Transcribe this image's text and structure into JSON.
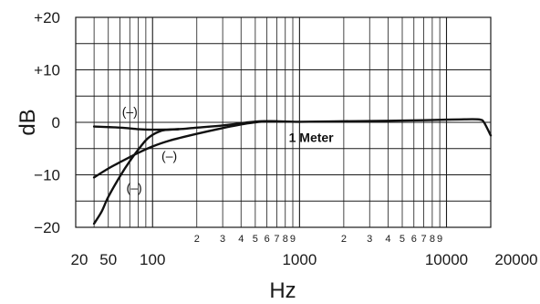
{
  "chart_data": {
    "type": "line",
    "xlabel": "Hz",
    "ylabel": "dB",
    "x_scale": "log",
    "xlim": [
      30,
      20000
    ],
    "ylim": [
      -20,
      20
    ],
    "grid": true,
    "y_ticks": [
      {
        "value": 20,
        "label": "+20"
      },
      {
        "value": 10,
        "label": "+10"
      },
      {
        "value": 0,
        "label": "0"
      },
      {
        "value": -10,
        "label": "−10"
      },
      {
        "value": -20,
        "label": "−20"
      }
    ],
    "x_major_ticks": [
      {
        "value": 20,
        "label": "20"
      },
      {
        "value": 50,
        "label": "50"
      },
      {
        "value": 100,
        "label": "100"
      },
      {
        "value": 1000,
        "label": "1000"
      },
      {
        "value": 10000,
        "label": "10000"
      },
      {
        "value": 20000,
        "label": "20000"
      }
    ],
    "x_minor_labels": [
      {
        "value": 200,
        "label": "2"
      },
      {
        "value": 300,
        "label": "3"
      },
      {
        "value": 400,
        "label": "4"
      },
      {
        "value": 500,
        "label": "5"
      },
      {
        "value": 600,
        "label": "6"
      },
      {
        "value": 700,
        "label": "7"
      },
      {
        "value": 800,
        "label": "8"
      },
      {
        "value": 900,
        "label": "9"
      },
      {
        "value": 2000,
        "label": "2"
      },
      {
        "value": 3000,
        "label": "3"
      },
      {
        "value": 4000,
        "label": "4"
      },
      {
        "value": 5000,
        "label": "5"
      },
      {
        "value": 6000,
        "label": "6"
      },
      {
        "value": 7000,
        "label": "7"
      },
      {
        "value": 8000,
        "label": "8"
      },
      {
        "value": 9000,
        "label": "9"
      }
    ],
    "series": [
      {
        "points": [
          [
            40,
            -0.8
          ],
          [
            60,
            -1.0
          ],
          [
            80,
            -1.3
          ],
          [
            100,
            -1.4
          ],
          [
            150,
            -1.3
          ],
          [
            200,
            -1.0
          ],
          [
            300,
            -0.6
          ],
          [
            450,
            0
          ],
          [
            550,
            0.2
          ],
          [
            700,
            0.2
          ],
          [
            1000,
            0.1
          ],
          [
            2000,
            0.2
          ],
          [
            4000,
            0.3
          ],
          [
            7000,
            0.4
          ],
          [
            10000,
            0.5
          ],
          [
            15000,
            0.6
          ],
          [
            17000,
            0.5
          ],
          [
            18000,
            0
          ],
          [
            20000,
            -2.5
          ]
        ]
      },
      {
        "points": [
          [
            40,
            -10.5
          ],
          [
            50,
            -8.8
          ],
          [
            60,
            -7.6
          ],
          [
            80,
            -5.8
          ],
          [
            100,
            -4.6
          ],
          [
            130,
            -3.5
          ],
          [
            200,
            -2.2
          ],
          [
            300,
            -1.1
          ],
          [
            400,
            -0.4
          ],
          [
            500,
            0
          ],
          [
            600,
            0.2
          ],
          [
            700,
            0.2
          ]
        ]
      },
      {
        "points": [
          [
            40,
            -19.3
          ],
          [
            45,
            -17.0
          ],
          [
            50,
            -14.2
          ],
          [
            60,
            -10.3
          ],
          [
            70,
            -7.4
          ],
          [
            80,
            -5.2
          ],
          [
            90,
            -3.4
          ],
          [
            100,
            -2.4
          ],
          [
            110,
            -1.8
          ],
          [
            120,
            -1.5
          ],
          [
            150,
            -1.3
          ]
        ]
      }
    ],
    "annotations": [
      {
        "text": "(–)",
        "x": 70,
        "y": 1.2
      },
      {
        "text": "(–)",
        "x": 130,
        "y": -7.2
      },
      {
        "text": "(–)",
        "x": 75,
        "y": -13.3
      },
      {
        "text": "1 Meter",
        "x": 1200,
        "y": -3.7,
        "bold": true
      }
    ]
  }
}
